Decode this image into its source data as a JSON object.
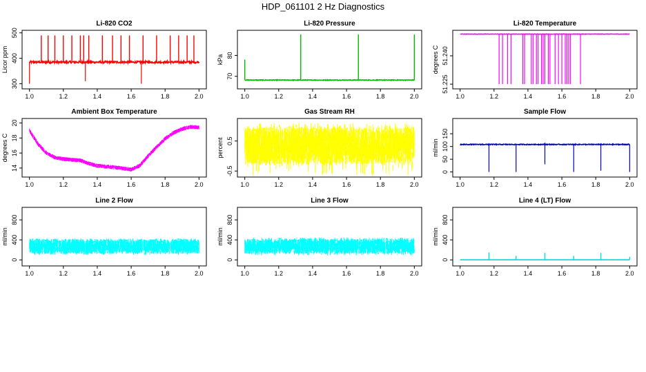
{
  "figure_title": "HDP_061101 2 Hz Diagnostics",
  "chart_data": [
    {
      "id": "co2",
      "type": "line",
      "title": "Li-820 CO2",
      "ylabel": "Licor ppm",
      "color": "#ff0000",
      "xlim": [
        1.0,
        2.0
      ],
      "ylim": [
        280,
        510
      ],
      "xticks": [
        "1.0",
        "1.2",
        "1.4",
        "1.6",
        "1.8",
        "2.0"
      ],
      "yticks": [
        {
          "v": 300,
          "label": "300"
        },
        {
          "v": 400,
          "label": "400"
        },
        {
          "v": 500,
          "label": "500"
        }
      ],
      "baseline": 385,
      "noise": 4,
      "spikes": [
        [
          1.07,
          490
        ],
        [
          1.11,
          490
        ],
        [
          1.15,
          490
        ],
        [
          1.2,
          490
        ],
        [
          1.25,
          490
        ],
        [
          1.3,
          490
        ],
        [
          1.32,
          490
        ],
        [
          1.35,
          490
        ],
        [
          1.43,
          490
        ],
        [
          1.49,
          490
        ],
        [
          1.54,
          490
        ],
        [
          1.59,
          490
        ],
        [
          1.67,
          490
        ],
        [
          1.75,
          490
        ],
        [
          1.83,
          490
        ],
        [
          1.88,
          490
        ],
        [
          1.93,
          490
        ],
        [
          1.97,
          490
        ]
      ],
      "dips": [
        [
          1.0,
          300
        ],
        [
          1.33,
          310
        ],
        [
          1.66,
          300
        ]
      ]
    },
    {
      "id": "pressure",
      "type": "line",
      "title": "Li-820 Pressure",
      "ylabel": "kPa",
      "color": "#00bb00",
      "xlim": [
        1.0,
        2.0
      ],
      "ylim": [
        64,
        92
      ],
      "xticks": [
        "1.0",
        "1.2",
        "1.4",
        "1.6",
        "1.8",
        "2.0"
      ],
      "yticks": [
        {
          "v": 70,
          "label": "70"
        },
        {
          "v": 80,
          "label": "80"
        }
      ],
      "baseline": 68.2,
      "noise": 0.15,
      "spikes": [
        [
          1.0,
          78
        ],
        [
          1.33,
          90
        ],
        [
          1.67,
          90
        ],
        [
          2.0,
          90
        ]
      ],
      "dips": []
    },
    {
      "id": "temperature",
      "type": "line",
      "title": "Li-820 Temperature",
      "ylabel": "degrees C",
      "color": "#ff00ff",
      "xlim": [
        1.0,
        2.0
      ],
      "ylim": [
        51.2225,
        51.2535
      ],
      "xticks": [
        "1.0",
        "1.2",
        "1.4",
        "1.6",
        "1.8",
        "2.0"
      ],
      "yticks": [
        {
          "v": 51.225,
          "label": "51.225"
        },
        {
          "v": 51.24,
          "label": "51.240"
        }
      ],
      "baseline": 51.2515,
      "noise": 0.0001,
      "spikes": [],
      "dips": [
        [
          1.23,
          51.225
        ],
        [
          1.25,
          51.225
        ],
        [
          1.28,
          51.225
        ],
        [
          1.3,
          51.225
        ],
        [
          1.37,
          51.225
        ],
        [
          1.38,
          51.225
        ],
        [
          1.42,
          51.225
        ],
        [
          1.43,
          51.225
        ],
        [
          1.45,
          51.225
        ],
        [
          1.46,
          51.225
        ],
        [
          1.48,
          51.225
        ],
        [
          1.49,
          51.225
        ],
        [
          1.5,
          51.225
        ],
        [
          1.52,
          51.225
        ],
        [
          1.53,
          51.225
        ],
        [
          1.56,
          51.225
        ],
        [
          1.58,
          51.225
        ],
        [
          1.6,
          51.225
        ],
        [
          1.62,
          51.225
        ],
        [
          1.63,
          51.225
        ],
        [
          1.64,
          51.225
        ],
        [
          1.65,
          51.225
        ],
        [
          1.71,
          51.225
        ]
      ]
    },
    {
      "id": "ambient",
      "type": "line",
      "title": "Ambient Box Temperature",
      "ylabel": "degrees C",
      "color": "#ff00ff",
      "xlim": [
        1.0,
        2.0
      ],
      "ylim": [
        12.8,
        20.6
      ],
      "xticks": [
        "1.0",
        "1.2",
        "1.4",
        "1.6",
        "1.8",
        "2.0"
      ],
      "yticks": [
        {
          "v": 14,
          "label": "14"
        },
        {
          "v": 16,
          "label": "16"
        },
        {
          "v": 18,
          "label": "18"
        },
        {
          "v": 20,
          "label": "20"
        }
      ],
      "curve": [
        [
          1.0,
          19.0
        ],
        [
          1.05,
          17.2
        ],
        [
          1.1,
          16.0
        ],
        [
          1.15,
          15.4
        ],
        [
          1.2,
          15.2
        ],
        [
          1.3,
          15.0
        ],
        [
          1.35,
          14.6
        ],
        [
          1.4,
          14.3
        ],
        [
          1.5,
          14.1
        ],
        [
          1.6,
          13.8
        ],
        [
          1.65,
          14.3
        ],
        [
          1.7,
          15.6
        ],
        [
          1.75,
          16.8
        ],
        [
          1.8,
          17.9
        ],
        [
          1.85,
          18.7
        ],
        [
          1.9,
          19.2
        ],
        [
          1.95,
          19.5
        ],
        [
          2.0,
          19.4
        ]
      ],
      "band": 0.55
    },
    {
      "id": "rh",
      "type": "band",
      "title": "Gas Stream RH",
      "ylabel": "percent",
      "color": "#ffff00",
      "xlim": [
        1.0,
        2.0
      ],
      "ylim": [
        -0.7,
        1.25
      ],
      "xticks": [
        "1.0",
        "1.2",
        "1.4",
        "1.6",
        "1.8",
        "2.0"
      ],
      "yticks": [
        {
          "v": -0.5,
          "label": "-0.5"
        },
        {
          "v": 0.5,
          "label": "0.5"
        }
      ],
      "lo": -0.3,
      "hi": 1.0,
      "extreme_lo": -0.65,
      "extreme_hi": 1.1
    },
    {
      "id": "sample",
      "type": "line",
      "title": "Sample Flow",
      "ylabel": "ml/min",
      "color": "#0000cc",
      "xlim": [
        1.0,
        2.0
      ],
      "ylim": [
        -20,
        210
      ],
      "xticks": [
        "1.0",
        "1.2",
        "1.4",
        "1.6",
        "1.8",
        "2.0"
      ],
      "yticks": [
        {
          "v": 0,
          "label": "0"
        },
        {
          "v": 50,
          "label": "50"
        },
        {
          "v": 100,
          "label": "100"
        },
        {
          "v": 150,
          "label": "150"
        }
      ],
      "baseline": 108,
      "noise": 1.5,
      "spikes": [
        [
          1.17,
          113
        ],
        [
          1.5,
          115
        ],
        [
          1.83,
          113
        ]
      ],
      "dips": [
        [
          1.17,
          0
        ],
        [
          1.33,
          0
        ],
        [
          1.5,
          30
        ],
        [
          1.67,
          0
        ],
        [
          1.83,
          5
        ],
        [
          2.0,
          0
        ]
      ]
    },
    {
      "id": "line2",
      "type": "band",
      "title": "Line 2 Flow",
      "ylabel": "ml/min",
      "color": "#00ffff",
      "xlim": [
        1.0,
        2.0
      ],
      "ylim": [
        -120,
        1050
      ],
      "xticks": [
        "1.0",
        "1.2",
        "1.4",
        "1.6",
        "1.8",
        "2.0"
      ],
      "yticks": [
        {
          "v": 0,
          "label": "0"
        },
        {
          "v": 400,
          "label": "400"
        },
        {
          "v": 800,
          "label": "800"
        }
      ],
      "lo": 120,
      "hi": 420,
      "extreme_lo": 100,
      "extreme_hi": 430,
      "gaps": [
        1.17,
        1.33,
        1.5,
        1.67,
        1.83
      ]
    },
    {
      "id": "line3",
      "type": "band",
      "title": "Line 3 Flow",
      "ylabel": "ml/min",
      "color": "#00ffff",
      "xlim": [
        1.0,
        2.0
      ],
      "ylim": [
        -120,
        1050
      ],
      "xticks": [
        "1.0",
        "1.2",
        "1.4",
        "1.6",
        "1.8",
        "2.0"
      ],
      "yticks": [
        {
          "v": 0,
          "label": "0"
        },
        {
          "v": 400,
          "label": "400"
        },
        {
          "v": 800,
          "label": "800"
        }
      ],
      "lo": 120,
      "hi": 430,
      "extreme_lo": 90,
      "extreme_hi": 450,
      "gaps": [
        1.17,
        1.33,
        1.5,
        1.67,
        1.83
      ]
    },
    {
      "id": "line4",
      "type": "line",
      "title": "Line 4 (LT) Flow",
      "ylabel": "ml/min",
      "color": "#00dddd",
      "xlim": [
        1.0,
        2.0
      ],
      "ylim": [
        -120,
        1050
      ],
      "xticks": [
        "1.0",
        "1.2",
        "1.4",
        "1.6",
        "1.8",
        "2.0"
      ],
      "yticks": [
        {
          "v": 0,
          "label": "0"
        },
        {
          "v": 400,
          "label": "400"
        },
        {
          "v": 800,
          "label": "800"
        }
      ],
      "baseline": 2,
      "noise": 1,
      "spikes": [
        [
          1.17,
          150
        ],
        [
          1.33,
          80
        ],
        [
          1.5,
          140
        ],
        [
          1.67,
          80
        ],
        [
          1.83,
          140
        ],
        [
          2.0,
          60
        ]
      ],
      "dips": []
    }
  ]
}
